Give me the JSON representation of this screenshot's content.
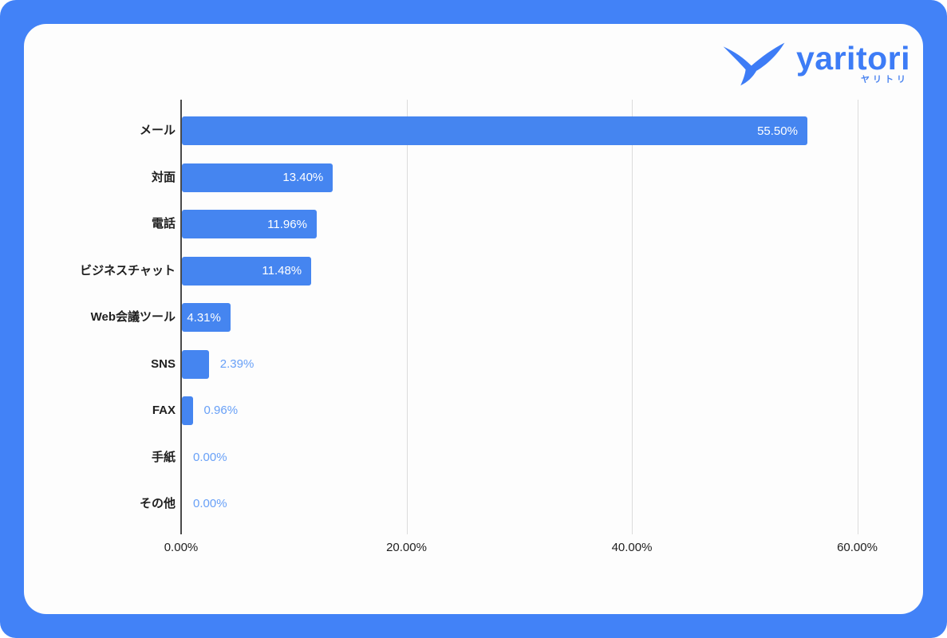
{
  "logo": {
    "brand": "yaritori",
    "brand_kana": "ヤリトリ"
  },
  "colors": {
    "frame_blue": "#4282f7",
    "bar_blue": "#4585f0",
    "value_outside_blue": "#68a0f7",
    "logo_blue": "#3d7cf6",
    "gridline": "#dcdcdc",
    "axis_line": "#4a4a4a",
    "label_text": "#1f1f1f"
  },
  "chart_data": {
    "type": "bar",
    "orientation": "horizontal",
    "title": "",
    "categories": [
      "メール",
      "対面",
      "電話",
      "ビジネスチャット",
      "Web会議ツール",
      "SNS",
      "FAX",
      "手紙",
      "その他"
    ],
    "values": [
      55.5,
      13.4,
      11.96,
      11.48,
      4.31,
      2.39,
      0.96,
      0.0,
      0.0
    ],
    "value_labels": [
      "55.50%",
      "13.40%",
      "11.96%",
      "11.48%",
      "4.31%",
      "2.39%",
      "0.96%",
      "0.00%",
      "0.00%"
    ],
    "x_ticks": [
      {
        "value": 0,
        "label": "0.00%"
      },
      {
        "value": 20,
        "label": "20.00%"
      },
      {
        "value": 40,
        "label": "40.00%"
      },
      {
        "value": 60,
        "label": "60.00%"
      }
    ],
    "xlim": [
      0,
      61.8
    ],
    "grid": true,
    "legend_position": "none"
  }
}
